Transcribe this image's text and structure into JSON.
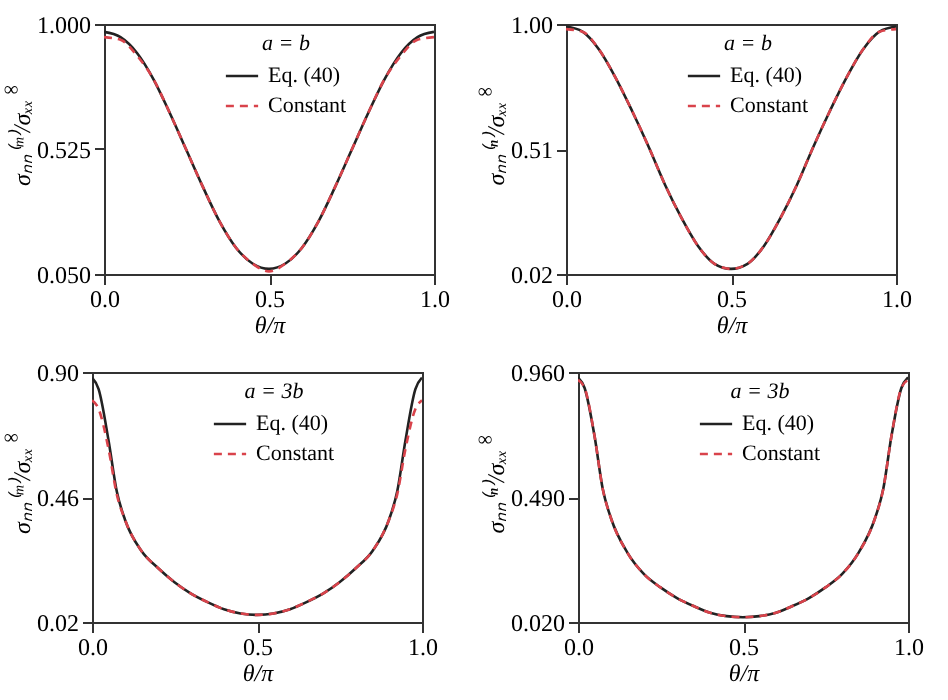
{
  "chart_data": [
    {
      "type": "line",
      "xlabel": "θ/π",
      "ylabel": "σₙₙ⁽ᵐ⁾/σₓₓ$^{∞}$",
      "legend_title": "a = b",
      "legend": "top",
      "grid": false,
      "xlim": [
        0,
        1
      ],
      "xticks": [
        {
          "value": 0,
          "label": "0.0"
        },
        {
          "value": 0.5,
          "label": "0.5"
        },
        {
          "value": 1,
          "label": "1.0"
        }
      ],
      "ylim": [
        0.05,
        1
      ],
      "yticks": [
        {
          "value": 0.05,
          "label": "0.050"
        },
        0.525,
        {
          "value": 1,
          "label": "1.000"
        }
      ],
      "x": [
        0,
        0.05,
        0.1,
        0.15,
        0.2,
        0.25,
        0.3,
        0.35,
        0.4,
        0.45,
        0.5,
        0.55,
        0.6,
        0.65,
        0.7,
        0.75,
        0.8,
        0.85,
        0.9,
        0.95,
        1
      ],
      "series": [
        {
          "name": "Eq. (40)",
          "color": "#222222",
          "line_style": "solid",
          "values": [
            0.97,
            0.95,
            0.89,
            0.79,
            0.66,
            0.52,
            0.38,
            0.25,
            0.15,
            0.09,
            0.07,
            0.09,
            0.15,
            0.25,
            0.38,
            0.52,
            0.66,
            0.79,
            0.89,
            0.95,
            0.97
          ]
        },
        {
          "name": "Constant",
          "color": "#d9434b",
          "line_style": "dashed",
          "values": [
            0.95,
            0.94,
            0.88,
            0.79,
            0.66,
            0.52,
            0.38,
            0.25,
            0.15,
            0.09,
            0.06,
            0.09,
            0.15,
            0.25,
            0.38,
            0.52,
            0.66,
            0.79,
            0.88,
            0.94,
            0.95
          ]
        }
      ]
    },
    {
      "type": "line",
      "xlabel": "θ/π",
      "ylabel": "σₙₙ⁽ⁿ⁾/σₓₓ$^{∞}$",
      "legend_title": "a = b",
      "legend": "top",
      "grid": false,
      "xlim": [
        0,
        1
      ],
      "xticks": [
        {
          "value": 0,
          "label": "0.0"
        },
        {
          "value": 0.5,
          "label": "0.5"
        },
        {
          "value": 1,
          "label": "1.0"
        }
      ],
      "ylim": [
        0.02,
        1
      ],
      "yticks": [
        0.02,
        0.51,
        {
          "value": 1,
          "label": "1.00"
        }
      ],
      "x": [
        0,
        0.05,
        0.1,
        0.15,
        0.2,
        0.25,
        0.3,
        0.35,
        0.4,
        0.45,
        0.5,
        0.55,
        0.6,
        0.65,
        0.7,
        0.75,
        0.8,
        0.85,
        0.9,
        0.95,
        1
      ],
      "series": [
        {
          "name": "Eq. (40)",
          "color": "#222222",
          "line_style": "solid",
          "values": [
            0.99,
            0.97,
            0.9,
            0.79,
            0.66,
            0.52,
            0.37,
            0.24,
            0.13,
            0.06,
            0.04,
            0.06,
            0.13,
            0.24,
            0.37,
            0.52,
            0.66,
            0.79,
            0.9,
            0.97,
            0.99
          ]
        },
        {
          "name": "Constant",
          "color": "#d9434b",
          "line_style": "dashed",
          "values": [
            0.98,
            0.97,
            0.9,
            0.79,
            0.66,
            0.52,
            0.37,
            0.24,
            0.13,
            0.06,
            0.04,
            0.06,
            0.13,
            0.24,
            0.37,
            0.52,
            0.66,
            0.79,
            0.9,
            0.97,
            0.98
          ]
        }
      ]
    },
    {
      "type": "line",
      "xlabel": "θ/π",
      "ylabel": "σₙₙ⁽ᵐ⁾/σₓₓ$^{∞}$",
      "legend_title": "a = 3b",
      "legend": "top",
      "grid": false,
      "xlim": [
        0,
        1
      ],
      "xticks": [
        {
          "value": 0,
          "label": "0.0"
        },
        {
          "value": 0.5,
          "label": "0.5"
        },
        {
          "value": 1,
          "label": "1.0"
        }
      ],
      "ylim": [
        0.02,
        0.9
      ],
      "yticks": [
        0.02,
        0.46,
        {
          "value": 0.9,
          "label": "0.90"
        }
      ],
      "x": [
        0,
        0.02,
        0.05,
        0.075,
        0.1,
        0.15,
        0.2,
        0.25,
        0.3,
        0.35,
        0.4,
        0.45,
        0.5,
        0.55,
        0.6,
        0.65,
        0.7,
        0.75,
        0.8,
        0.85,
        0.9,
        0.925,
        0.95,
        0.98,
        1
      ],
      "series": [
        {
          "name": "Eq. (40)",
          "color": "#222222",
          "line_style": "solid",
          "values": [
            0.88,
            0.84,
            0.66,
            0.48,
            0.38,
            0.27,
            0.21,
            0.16,
            0.12,
            0.09,
            0.065,
            0.05,
            0.045,
            0.05,
            0.065,
            0.09,
            0.12,
            0.16,
            0.21,
            0.27,
            0.38,
            0.48,
            0.66,
            0.84,
            0.88
          ]
        },
        {
          "name": "Constant",
          "color": "#d9434b",
          "line_style": "dashed",
          "values": [
            0.8,
            0.77,
            0.63,
            0.47,
            0.38,
            0.27,
            0.21,
            0.16,
            0.12,
            0.09,
            0.065,
            0.05,
            0.045,
            0.05,
            0.065,
            0.09,
            0.12,
            0.16,
            0.21,
            0.27,
            0.38,
            0.47,
            0.63,
            0.77,
            0.8
          ]
        }
      ]
    },
    {
      "type": "line",
      "xlabel": "θ/π",
      "ylabel": "σₙₙ⁽ⁿ⁾/σₓₓ$^{∞}$",
      "legend_title": "a = 3b",
      "legend": "top",
      "grid": false,
      "xlim": [
        0,
        1
      ],
      "xticks": [
        {
          "value": 0,
          "label": "0.0"
        },
        {
          "value": 0.5,
          "label": "0.5"
        },
        {
          "value": 1,
          "label": "1.0"
        }
      ],
      "ylim": [
        0.02,
        0.96
      ],
      "yticks": [
        {
          "value": 0.02,
          "label": "0.020"
        },
        {
          "value": 0.49,
          "label": "0.490"
        },
        {
          "value": 0.96,
          "label": "0.960"
        }
      ],
      "x": [
        0,
        0.02,
        0.05,
        0.075,
        0.1,
        0.15,
        0.2,
        0.25,
        0.3,
        0.35,
        0.4,
        0.45,
        0.5,
        0.55,
        0.6,
        0.65,
        0.7,
        0.75,
        0.8,
        0.85,
        0.9,
        0.925,
        0.95,
        0.98,
        1
      ],
      "series": [
        {
          "name": "Eq. (40)",
          "color": "#222222",
          "line_style": "solid",
          "values": [
            0.94,
            0.9,
            0.72,
            0.52,
            0.41,
            0.28,
            0.2,
            0.15,
            0.11,
            0.08,
            0.055,
            0.042,
            0.038,
            0.042,
            0.055,
            0.08,
            0.11,
            0.15,
            0.2,
            0.28,
            0.41,
            0.52,
            0.72,
            0.9,
            0.94
          ]
        },
        {
          "name": "Constant",
          "color": "#d9434b",
          "line_style": "dashed",
          "values": [
            0.93,
            0.9,
            0.72,
            0.52,
            0.41,
            0.28,
            0.2,
            0.15,
            0.11,
            0.08,
            0.055,
            0.042,
            0.038,
            0.042,
            0.055,
            0.08,
            0.11,
            0.15,
            0.2,
            0.28,
            0.41,
            0.52,
            0.72,
            0.9,
            0.93
          ]
        }
      ]
    }
  ]
}
